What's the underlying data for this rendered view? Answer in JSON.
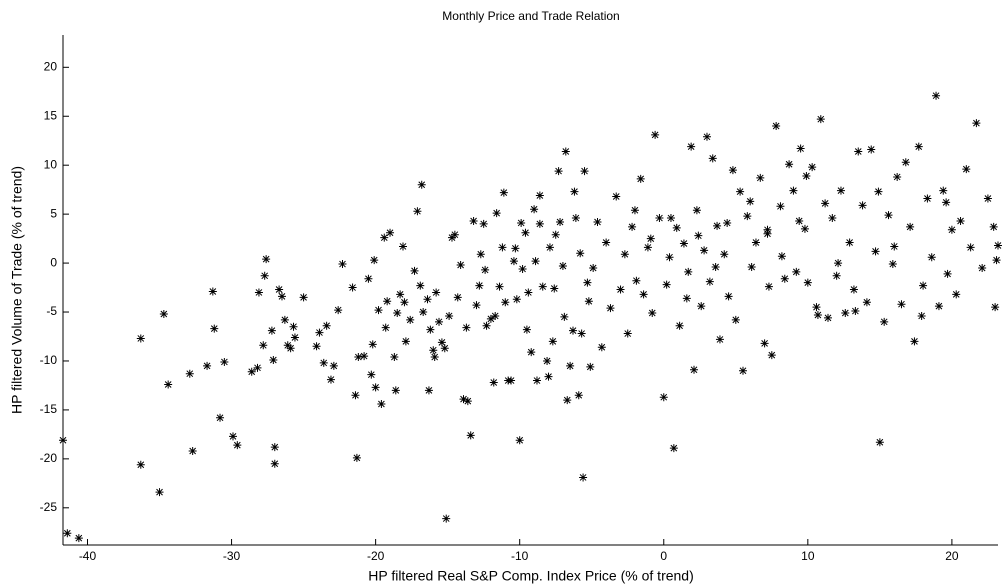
{
  "chart_data": {
    "type": "scatter",
    "title": "Monthly Price and Trade Relation",
    "x_label": "HP filtered Real S&P Comp. Index Price (% of trend)",
    "y_label": "HP filtered Volume of Trade (% of trend)",
    "marker": "asterisk",
    "color": "#000000",
    "xlim": [
      -41.7,
      23.2
    ],
    "ylim": [
      -28.8,
      23.3
    ],
    "xticks": [
      -40,
      -30,
      -20,
      -10,
      0,
      10,
      20
    ],
    "yticks": [
      -25,
      -20,
      -15,
      -10,
      -5,
      0,
      5,
      10,
      15,
      20
    ],
    "x": [
      -41.7,
      -41.4,
      -40.6,
      -36.3,
      -36.3,
      -35,
      -34.7,
      -34.4,
      -32.9,
      -32.7,
      -31.7,
      -31.3,
      -31.2,
      -30.8,
      -30.5,
      -29.9,
      -29.6,
      -28.6,
      -28.2,
      -28.1,
      -27.8,
      -27.7,
      -27.6,
      -27.2,
      -27.1,
      -27.0,
      -27.0,
      -26.7,
      -26.5,
      -26.3,
      -26.1,
      -25.9,
      -25.7,
      -25.6,
      -25.0,
      -24.1,
      -23.9,
      -23.6,
      -23.4,
      -23.1,
      -22.9,
      -22.6,
      -22.3,
      -21.6,
      -21.4,
      -21.3,
      -21.2,
      -20.8,
      -20.5,
      -20.3,
      -20.2,
      -20.1,
      -20.0,
      -19.8,
      -19.6,
      -19.4,
      -19.3,
      -19.2,
      -19.0,
      -18.7,
      -18.6,
      -18.5,
      -18.3,
      -18.1,
      -18.0,
      -17.9,
      -17.6,
      -17.3,
      -17.1,
      -16.9,
      -16.8,
      -16.7,
      -16.4,
      -16.3,
      -16.2,
      -16.0,
      -15.9,
      -15.8,
      -15.6,
      -15.4,
      -15.2,
      -14.9,
      -14.7,
      -14.5,
      -14.3,
      -14.1,
      -15.1,
      -13.9,
      -13.7,
      -13.6,
      -13.4,
      -13.2,
      -13.0,
      -12.8,
      -12.7,
      -12.5,
      -12.4,
      -12.3,
      -12.0,
      -11.8,
      -11.7,
      -11.6,
      -11.4,
      -11.2,
      -11.1,
      -11.0,
      -10.8,
      -10.6,
      -10.4,
      -10.3,
      -10.2,
      -10.0,
      -9.8,
      -9.5,
      -9.4,
      -9.2,
      -9.0,
      -8.8,
      -8.6,
      -8.4,
      -8.1,
      -8.0,
      -7.9,
      -7.7,
      -7.5,
      -7.2,
      -7.0,
      -6.9,
      -6.7,
      -6.5,
      -6.3,
      -6.1,
      -5.9,
      -5.7,
      -5.5,
      -5.3,
      -5.1,
      -5.6,
      -4.9,
      -4.6,
      -4.3,
      -4.0,
      -3.7,
      -3.3,
      -3.0,
      -2.7,
      -2.5,
      -2.2,
      -1.9,
      -1.6,
      -1.4,
      -1.1,
      -0.8,
      -0.6,
      -0.3,
      0,
      0.2,
      0.4,
      0.7,
      0.9,
      1.1,
      1.4,
      1.7,
      1.9,
      2.1,
      2.3,
      2.6,
      2.8,
      3.0,
      3.2,
      3.4,
      3.7,
      3.9,
      4.2,
      4.5,
      4.8,
      5.0,
      5.3,
      5.5,
      5.8,
      6.1,
      6.4,
      6.7,
      7.0,
      7.2,
      7.5,
      7.8,
      8.1,
      8.4,
      8.7,
      9.0,
      9.2,
      9.5,
      9.8,
      10.0,
      10.3,
      10.6,
      10.9,
      11.2,
      11.4,
      11.7,
      12.0,
      12.3,
      12.6,
      12.9,
      13.2,
      13.5,
      13.8,
      14.1,
      14.4,
      14.7,
      15.0,
      15.3,
      15.6,
      15.9,
      16.2,
      16.5,
      16.8,
      17.1,
      17.4,
      17.7,
      18.0,
      18.3,
      18.6,
      18.9,
      19.1,
      19.4,
      19.7,
      20.0,
      20.3,
      20.6,
      21.0,
      21.3,
      21.7,
      22.1,
      22.5,
      22.9,
      23.0,
      23.1,
      23.2,
      -9.9,
      -8.6,
      -7.3,
      -6.8,
      -6.2,
      -5.8,
      -5.2,
      -7.6,
      -8.9,
      -9.6,
      -2.0,
      -0.9,
      0.5,
      1.6,
      2.4,
      3.6,
      4.4,
      6.0,
      7.3,
      8.2,
      9.4,
      10.7,
      12.1,
      13.3,
      14.9,
      16.0,
      17.9,
      19.6,
      7.2,
      9.9
    ],
    "values": [
      -18.1,
      -27.6,
      -28.1,
      -7.7,
      -20.6,
      -23.4,
      -5.2,
      -12.4,
      -11.3,
      -19.2,
      -10.5,
      -2.9,
      -6.7,
      -15.8,
      -10.1,
      -17.7,
      -18.6,
      -11.1,
      -10.7,
      -3.0,
      -8.4,
      -1.3,
      0.4,
      -6.9,
      -9.9,
      -18.8,
      -20.5,
      -2.7,
      -3.4,
      -5.8,
      -8.4,
      -8.7,
      -6.5,
      -7.6,
      -3.5,
      -8.5,
      -7.1,
      -10.2,
      -6.4,
      -11.9,
      -10.5,
      -4.8,
      -0.1,
      -2.5,
      -13.5,
      -19.9,
      -9.6,
      -9.5,
      -1.6,
      -11.4,
      -8.3,
      0.3,
      -12.7,
      -4.8,
      -14.4,
      2.6,
      -6.6,
      -3.9,
      3.1,
      -9.6,
      -13.0,
      -5.1,
      -3.2,
      1.7,
      -4.0,
      -8.0,
      -5.8,
      -0.8,
      5.3,
      -2.3,
      8.0,
      -5.0,
      -3.7,
      -13.0,
      -6.8,
      -8.9,
      -9.6,
      -3.0,
      -6.0,
      -8.1,
      -8.7,
      -5.4,
      2.6,
      2.9,
      -3.5,
      -0.2,
      -26.1,
      -13.9,
      -6.6,
      -14.1,
      -17.6,
      4.3,
      -4.3,
      -2.3,
      0.9,
      4.0,
      -0.7,
      -6.4,
      -5.7,
      -12.2,
      -5.4,
      5.1,
      -2.4,
      1.6,
      7.2,
      -4.0,
      -12.0,
      -12.0,
      0.2,
      1.5,
      -3.7,
      -18.1,
      -0.6,
      -6.8,
      -3.0,
      -9.1,
      5.5,
      -12.0,
      4.0,
      -2.4,
      -10.0,
      -11.6,
      1.6,
      -8.0,
      2.9,
      4.2,
      -0.3,
      -5.5,
      -14.0,
      -10.5,
      -6.9,
      4.6,
      -13.5,
      -7.2,
      9.4,
      -2.0,
      -10.6,
      -21.9,
      -0.5,
      4.2,
      -8.6,
      2.1,
      -4.6,
      6.8,
      -2.7,
      0.9,
      -7.2,
      3.7,
      -1.8,
      8.6,
      -3.2,
      1.6,
      -5.1,
      13.1,
      4.6,
      -13.7,
      -2.2,
      0.6,
      -18.9,
      3.6,
      -6.4,
      2.0,
      -0.9,
      11.9,
      -10.9,
      5.4,
      -4.4,
      1.3,
      12.9,
      -1.9,
      10.7,
      3.8,
      -7.8,
      0.9,
      -3.4,
      9.5,
      -5.8,
      7.3,
      -11.0,
      4.8,
      -0.4,
      2.1,
      8.7,
      -8.2,
      3.4,
      -9.4,
      14.0,
      5.8,
      -1.6,
      10.1,
      7.4,
      -0.9,
      11.7,
      3.5,
      -2.0,
      9.8,
      -4.5,
      14.7,
      6.1,
      -5.6,
      4.6,
      -1.3,
      7.4,
      -5.1,
      2.1,
      -2.7,
      11.4,
      5.9,
      -4.0,
      11.6,
      1.2,
      -18.3,
      -6.0,
      4.9,
      -0.1,
      8.8,
      -4.2,
      10.3,
      3.7,
      -8.0,
      11.9,
      -2.3,
      6.6,
      0.6,
      17.1,
      -4.4,
      7.4,
      -1.1,
      3.4,
      -3.2,
      4.3,
      9.6,
      1.6,
      14.3,
      -0.5,
      6.6,
      3.7,
      -4.5,
      0.3,
      1.8,
      4.1,
      6.9,
      9.4,
      11.4,
      7.3,
      1.0,
      -3.9,
      -2.6,
      0.2,
      3.1,
      5.4,
      2.5,
      4.6,
      -3.6,
      2.8,
      -0.4,
      4.1,
      6.3,
      -2.4,
      0.7,
      4.3,
      -5.3,
      0.0,
      -4.9,
      7.3,
      1.7,
      -5.4,
      6.2,
      3.0,
      8.9
    ]
  }
}
